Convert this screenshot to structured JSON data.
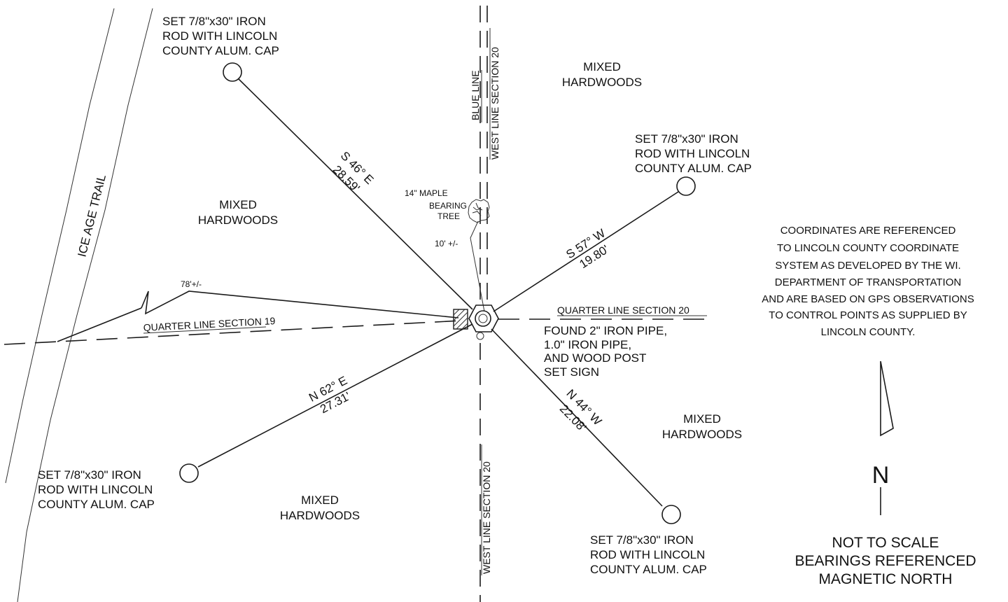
{
  "trail": {
    "label": "ICE AGE TRAIL"
  },
  "lines": {
    "blue_line": "BLUE LINE",
    "west_line_top": "WEST LINE SECTION 20",
    "west_line_bottom": "WEST LINE SECTION 20",
    "quarter_19": "QUARTER LINE SECTION 19",
    "quarter_20": "QUARTER LINE SECTION 20"
  },
  "rod_label": {
    "line1": "SET 7/8\"x30\" IRON",
    "line2": "ROD WITH LINCOLN",
    "line3": "COUNTY ALUM. CAP"
  },
  "woods": {
    "line1": "MIXED",
    "line2": "HARDWOODS"
  },
  "bearings": {
    "nw": {
      "bearing": "S 46° E",
      "distance": "28.59'"
    },
    "ne": {
      "bearing": "S 57° W",
      "distance": "19.80'"
    },
    "sw": {
      "bearing": "N 62° E",
      "distance": "27.31'"
    },
    "se": {
      "bearing": "N 44° W",
      "distance": "22.08'"
    }
  },
  "tree": {
    "line1": "14\" MAPLE",
    "line2": "BEARING",
    "line3": "TREE",
    "distance": "10' +/-"
  },
  "offset": "78'+/-",
  "found_monument": {
    "line1": "FOUND 2\" IRON PIPE,",
    "line2": "1.0\" IRON PIPE,",
    "line3": "AND WOOD POST",
    "line4": "SET SIGN"
  },
  "coordinates_note": {
    "line1": "COORDINATES ARE REFERENCED",
    "line2": "TO LINCOLN COUNTY COORDINATE",
    "line3": "SYSTEM AS DEVELOPED BY THE WI.",
    "line4": "DEPARTMENT OF TRANSPORTATION",
    "line5": "AND ARE BASED ON GPS OBSERVATIONS",
    "line6": "TO CONTROL POINTS AS SUPPLIED BY",
    "line7": "LINCOLN COUNTY."
  },
  "north": {
    "letter": "N"
  },
  "scale_note": {
    "line1": "NOT TO SCALE",
    "line2": "BEARINGS REFERENCED",
    "line3": "MAGNETIC NORTH"
  }
}
